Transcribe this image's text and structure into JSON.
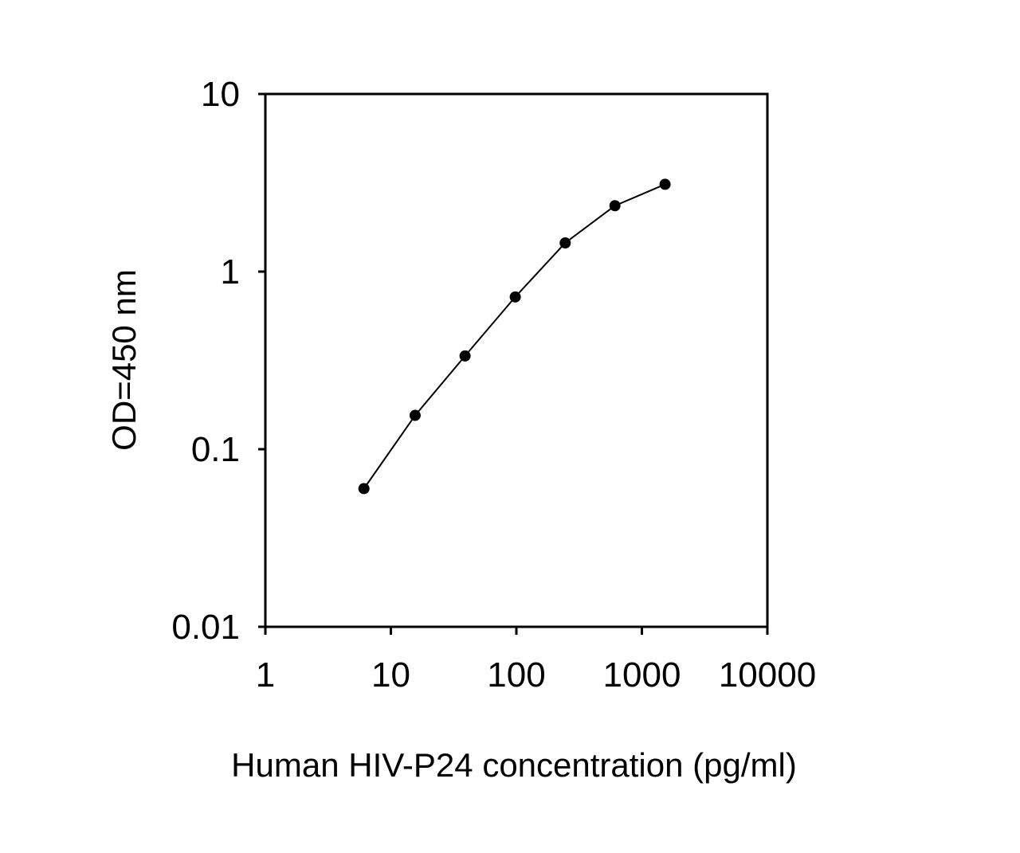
{
  "chart_data": {
    "type": "line",
    "title": "",
    "xlabel": "Human HIV-P24 concentration (pg/ml)",
    "ylabel": "OD=450 nm",
    "x_scale": "log",
    "y_scale": "log",
    "xlim": [
      1,
      10000
    ],
    "ylim": [
      0.01,
      10
    ],
    "x_ticks": [
      1,
      10,
      100,
      1000,
      10000
    ],
    "x_tick_labels": [
      "1",
      "10",
      "100",
      "1000",
      "10000"
    ],
    "y_ticks": [
      0.01,
      0.1,
      1,
      10
    ],
    "y_tick_labels": [
      "0.01",
      "0.1",
      "1",
      "10"
    ],
    "grid": false,
    "legend": "none",
    "marker": "circle",
    "line_color": "#000000",
    "marker_color": "#000000",
    "series": [
      {
        "x": [
          6.1,
          15.6,
          39,
          98,
          245,
          610,
          1530
        ],
        "y": [
          0.06,
          0.155,
          0.335,
          0.72,
          1.45,
          2.35,
          3.1
        ]
      }
    ]
  }
}
